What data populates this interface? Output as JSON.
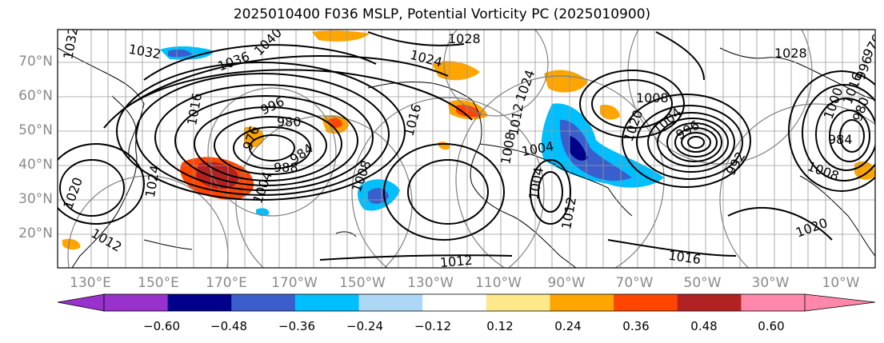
{
  "title": "2025010400 F036 MSLP, Potential Vorticity PC (2025010900)",
  "lat_labels": [
    "70°N",
    "60°N",
    "50°N",
    "40°N",
    "30°N",
    "20°N"
  ],
  "lon_labels": [
    "130°E",
    "150°E",
    "170°E",
    "170°W",
    "150°W",
    "130°W",
    "110°W",
    "90°W",
    "70°W",
    "50°W",
    "30°W",
    "10°W"
  ],
  "colorbar": {
    "colors": [
      "#9932cc",
      "#00008b",
      "#3a5fcd",
      "#00bfff",
      "#add8f5",
      "#ffffff",
      "#ffe88a",
      "#ffa500",
      "#ff4500",
      "#b22222",
      "#ff88aa"
    ],
    "labels": [
      "−0.60",
      "−0.48",
      "−0.36",
      "−0.24",
      "−0.12",
      "0.12",
      "0.24",
      "0.36",
      "0.48",
      "0.60"
    ]
  },
  "contour_labels": [
    "1032",
    "1036",
    "1040",
    "1028",
    "1024",
    "1012",
    "1008",
    "1004",
    "996",
    "988",
    "984",
    "980",
    "976",
    "1016",
    "1024",
    "1020",
    "1032",
    "1008",
    "1004",
    "1012",
    "1016",
    "1004",
    "996",
    "984",
    "980",
    "976",
    "1028",
    "1020",
    "1016",
    "1012",
    "1008",
    "996",
    "992",
    "1016",
    "1012",
    "1008",
    "1004",
    "1020",
    "1024",
    "1000"
  ]
}
